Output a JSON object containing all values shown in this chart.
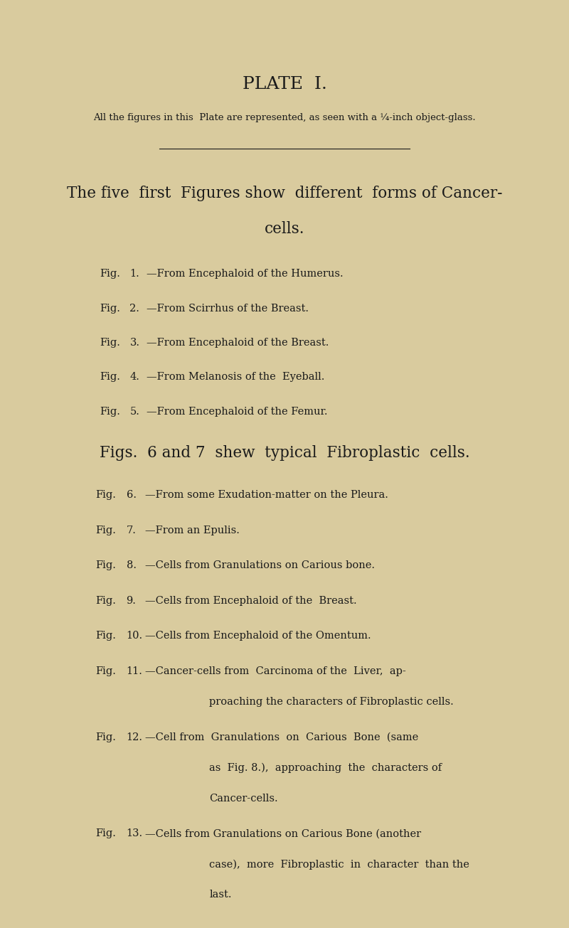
{
  "bg_color": "#d9cb9e",
  "text_color": "#1a1a1a",
  "title": "PLATE  I.",
  "subtitle": "All the figures in this  Plate are represented, as seen with a ¼-inch object-glass.",
  "section1_heading_line1": "The five  first  Figures show  different  forms of Cancer-",
  "section1_heading_line2": "cells.",
  "section1_items": [
    [
      "Fig.",
      "1.",
      "—From Encephaloid of the Humerus."
    ],
    [
      "Fig.",
      "2.",
      "—From Scirrhus of the Breast."
    ],
    [
      "Fig.",
      "3.",
      "—From Encephaloid of the Breast."
    ],
    [
      "Fig.",
      "4.",
      "—From Melanosis of the  Eyeball."
    ],
    [
      "Fig.",
      "5.",
      "—From Encephaloid of the Femur."
    ]
  ],
  "section2_heading": "Figs.  6 and 7  shew  typical  Fibroplastic  cells.",
  "section2_items": [
    {
      "label": "Fig.",
      "num": "6.",
      "text": "—From some Exudation-matter on the Pleura.",
      "continuations": []
    },
    {
      "label": "Fig.",
      "num": "7.",
      "text": "—From an Epulis.",
      "continuations": []
    },
    {
      "label": "Fig.",
      "num": "8.",
      "text": "—Cells from Granulations on Carious bone.",
      "continuations": []
    },
    {
      "label": "Fig.",
      "num": "9.",
      "text": "—Cells from Encephaloid of the  Breast.",
      "continuations": []
    },
    {
      "label": "Fig.",
      "num": "10.",
      "text": "—Cells from Encephaloid of the Omentum.",
      "continuations": []
    },
    {
      "label": "Fig.",
      "num": "11.",
      "text": "—Cancer-cells from  Carcinoma of the  Liver,  ap-",
      "continuations": [
        "proaching the characters of Fibroplastic cells."
      ]
    },
    {
      "label": "Fig.",
      "num": "12.",
      "text": "—Cell from  Granulations  on  Carious  Bone  (same",
      "continuations": [
        "as  Fig. 8.),  approaching  the  characters of",
        "Cancer-cells."
      ]
    },
    {
      "label": "Fig.",
      "num": "13.",
      "text": "—Cells from Granulations on Carious Bone (another",
      "continuations": [
        "case),  more  Fibroplastic  in  character  than the",
        "last."
      ]
    }
  ]
}
